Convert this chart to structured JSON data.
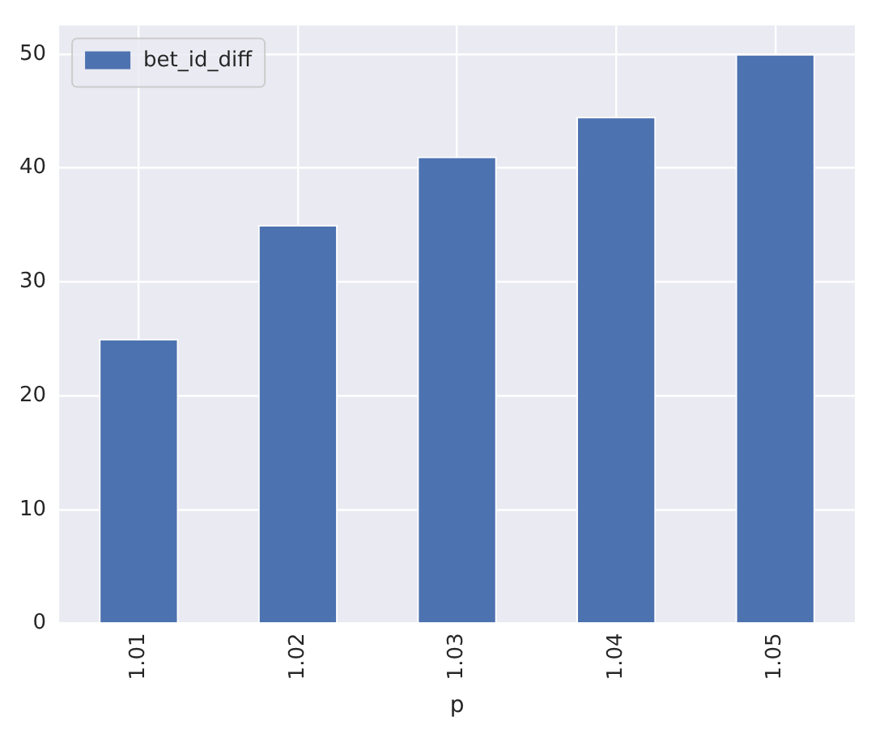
{
  "chart_data": {
    "type": "bar",
    "xlabel": "p",
    "categories": [
      "1.01",
      "1.02",
      "1.03",
      "1.04",
      "1.05"
    ],
    "series": [
      {
        "name": "bet_id_diff",
        "color": "#4c72b0",
        "values": [
          25,
          35,
          41,
          44.5,
          50
        ]
      }
    ],
    "ylim": [
      0,
      52.5
    ],
    "yticks": [
      0,
      10,
      20,
      30,
      40,
      50
    ],
    "grid": true,
    "legend": "top left"
  }
}
